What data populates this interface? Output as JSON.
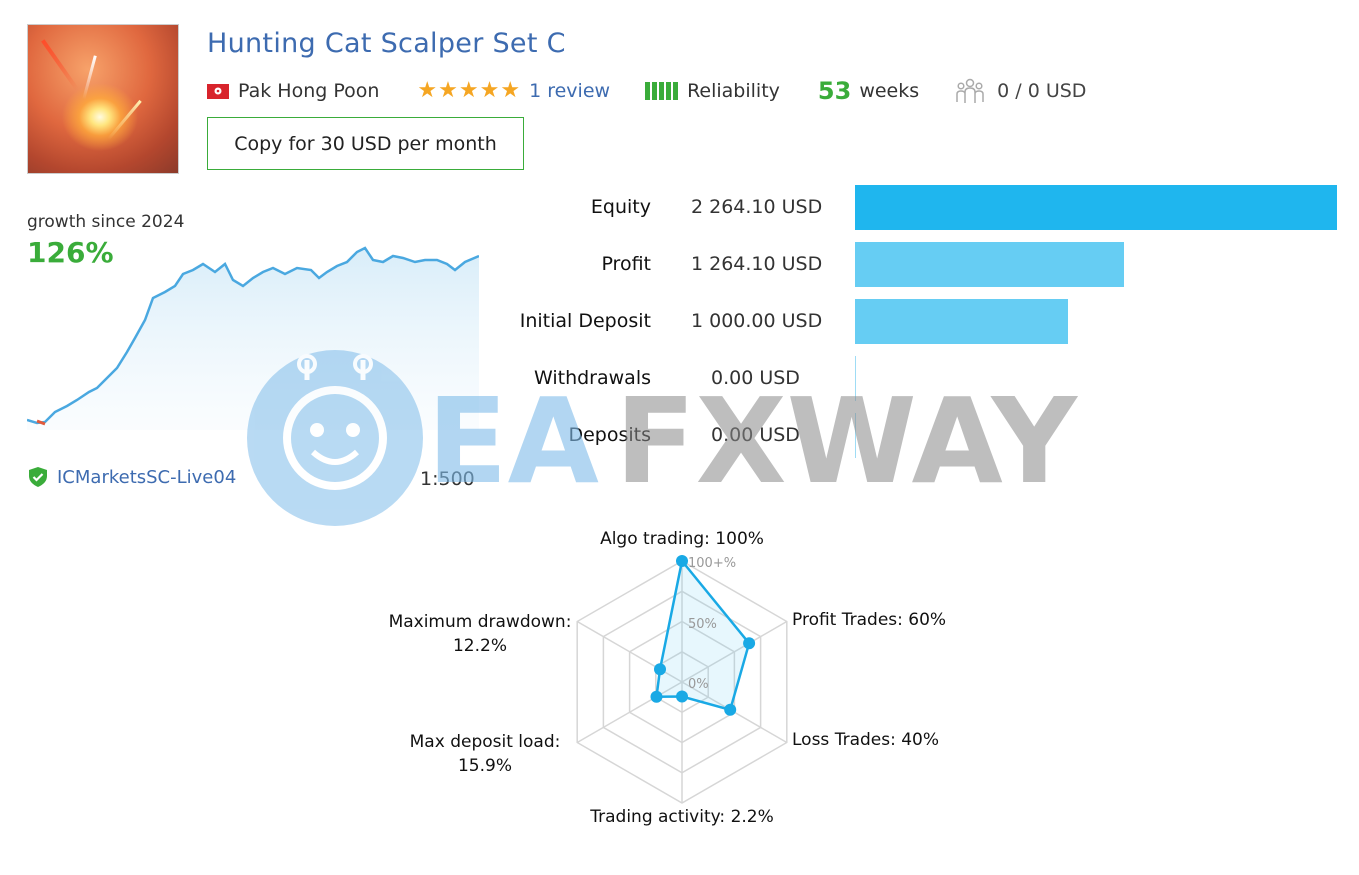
{
  "signal": {
    "title": "Hunting Cat Scalper Set C",
    "author": "Pak Hong Poon",
    "reviews": "1 review",
    "rating": 5,
    "reliability_label": "Reliability",
    "weeks_value": "53",
    "weeks_label": "weeks",
    "subscribers": "0 / 0 USD",
    "copy_button": "Copy for 30 USD per month"
  },
  "growth": {
    "label": "growth since 2024",
    "value": "126%",
    "broker": "ICMarketsSC-Live04",
    "leverage": "1:500"
  },
  "stats": [
    {
      "label": "Equity",
      "value": "2 264.10 USD",
      "amount": 2264.1
    },
    {
      "label": "Profit",
      "value": "1 264.10 USD",
      "amount": 1264.1
    },
    {
      "label": "Initial Deposit",
      "value": "1 000.00 USD",
      "amount": 1000.0
    },
    {
      "label": "Withdrawals",
      "value": "0.00 USD",
      "amount": 0
    },
    {
      "label": "Deposits",
      "value": "0.00 USD",
      "amount": 0
    }
  ],
  "radar": {
    "axes": [
      {
        "label": "Algo trading: 100%",
        "value": 100
      },
      {
        "label": "Profit Trades: 60%",
        "value": 60
      },
      {
        "label": "Loss Trades: 40%",
        "value": 40
      },
      {
        "label": "Trading activity: 2.2%",
        "value": 2.2
      },
      {
        "label_line1": "Max deposit load:",
        "label_line2": "15.9%",
        "value": 15.9
      },
      {
        "label_line1": "Maximum drawdown:",
        "label_line2": "12.2%",
        "value": 12.2
      }
    ],
    "ticks": [
      "100+%",
      "50%",
      "0%"
    ]
  },
  "watermark": {
    "text_blue": "EA",
    "text_gray": "FXWAY"
  },
  "colors": {
    "brand_blue": "#3d6bb0",
    "green": "#3aac3a",
    "equity_bar": "#1fb6ee",
    "bar": "#66cdf3",
    "star": "#f5a623"
  }
}
